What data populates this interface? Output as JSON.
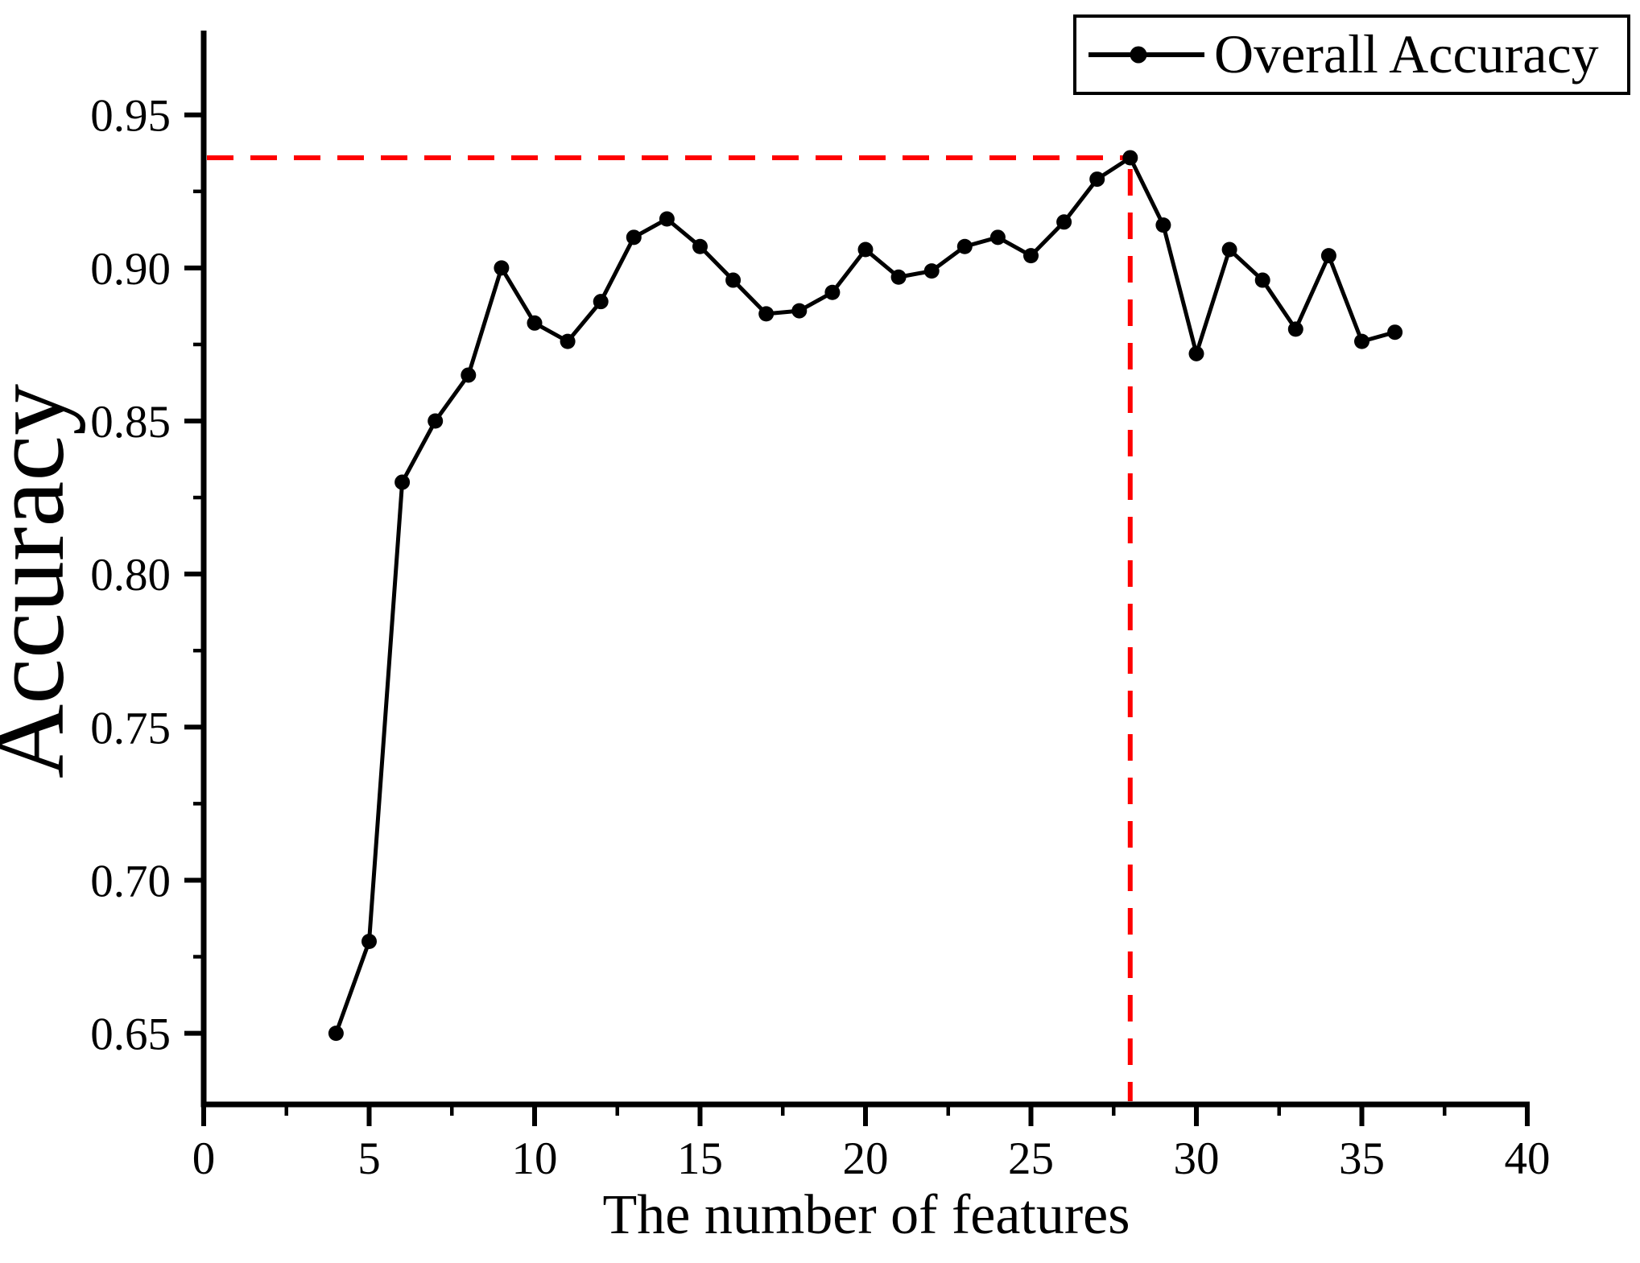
{
  "chart_data": {
    "type": "line",
    "title": "",
    "xlabel": "The number of features",
    "ylabel": "Accuracy",
    "grid": false,
    "legend": {
      "position": "top-right",
      "entries": [
        "Overall Accuracy"
      ]
    },
    "series": [
      {
        "name": "Overall Accuracy",
        "color": "#000000",
        "marker": "filled-circle",
        "x": [
          4,
          5,
          6,
          7,
          8,
          9,
          10,
          11,
          12,
          13,
          14,
          15,
          16,
          17,
          18,
          19,
          20,
          21,
          22,
          23,
          24,
          25,
          26,
          27,
          28,
          29,
          30,
          31,
          32,
          33,
          34,
          35,
          36
        ],
        "y": [
          0.65,
          0.68,
          0.83,
          0.85,
          0.865,
          0.9,
          0.882,
          0.876,
          0.889,
          0.91,
          0.916,
          0.907,
          0.896,
          0.885,
          0.886,
          0.892,
          0.906,
          0.897,
          0.899,
          0.907,
          0.91,
          0.904,
          0.915,
          0.929,
          0.936,
          0.914,
          0.872,
          0.906,
          0.896,
          0.88,
          0.904,
          0.876,
          0.879
        ]
      }
    ],
    "x_axis": {
      "min": 0,
      "max": 40,
      "major_ticks": [
        0,
        5,
        10,
        15,
        20,
        25,
        30,
        35,
        40
      ],
      "tick_labels": [
        "0",
        "5",
        "10",
        "15",
        "20",
        "25",
        "30",
        "35",
        "40"
      ],
      "minor_ticks": [
        2.5,
        7.5,
        12.5,
        17.5,
        22.5,
        27.5,
        32.5,
        37.5
      ]
    },
    "y_axis": {
      "min": 0.627,
      "max": 0.978,
      "major_ticks": [
        0.95,
        0.9,
        0.85,
        0.8,
        0.75,
        0.7,
        0.65
      ],
      "tick_labels": [
        "0.95",
        "0.90",
        "0.85",
        "0.80",
        "0.75",
        "0.70",
        "0.65"
      ],
      "minor_ticks": [
        0.925,
        0.875,
        0.825,
        0.775,
        0.725,
        0.675
      ]
    },
    "annotations": {
      "crosshair": {
        "x": 28,
        "y": 0.936,
        "color": "#ff0000",
        "style": "dashed",
        "description": "red dashed reference lines marking the best overall accuracy (0.936) at 28 features"
      }
    },
    "axis_color": "#000000"
  }
}
